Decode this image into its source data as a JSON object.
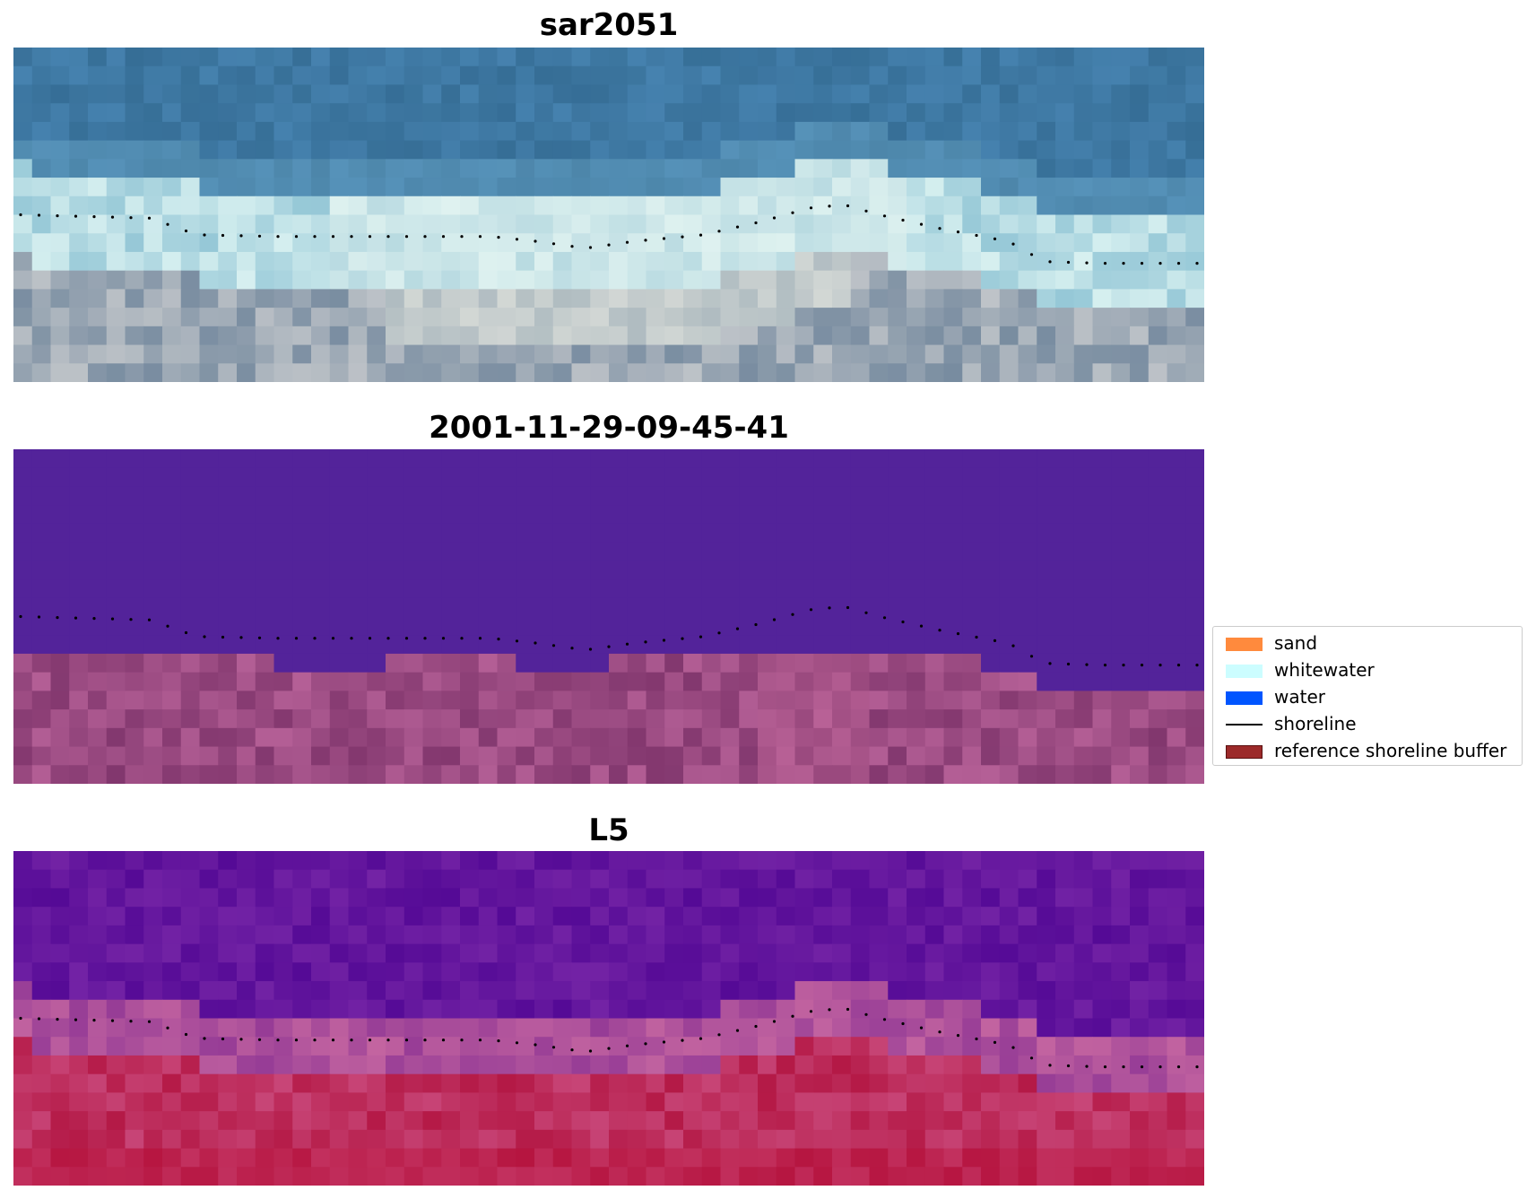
{
  "panels": [
    {
      "title": "sar2051",
      "image_name": "rgb-composite"
    },
    {
      "title": "2001-11-29-09-45-41",
      "image_name": "classified-image"
    },
    {
      "title": "L5",
      "image_name": "index-image"
    }
  ],
  "legend": {
    "items": [
      {
        "label": "sand",
        "color": "#ff8a3d",
        "kind": "patch"
      },
      {
        "label": "whitewater",
        "color": "#ccfdff",
        "kind": "patch"
      },
      {
        "label": "water",
        "color": "#0055ff",
        "kind": "patch"
      },
      {
        "label": "shoreline",
        "color": "#000000",
        "kind": "line"
      },
      {
        "label": "reference shoreline buffer",
        "color": "#9c2a2a",
        "kind": "patch"
      }
    ]
  },
  "colors": {
    "classified_water_tone": "#53239a",
    "shoreline_dots": "#000000"
  }
}
